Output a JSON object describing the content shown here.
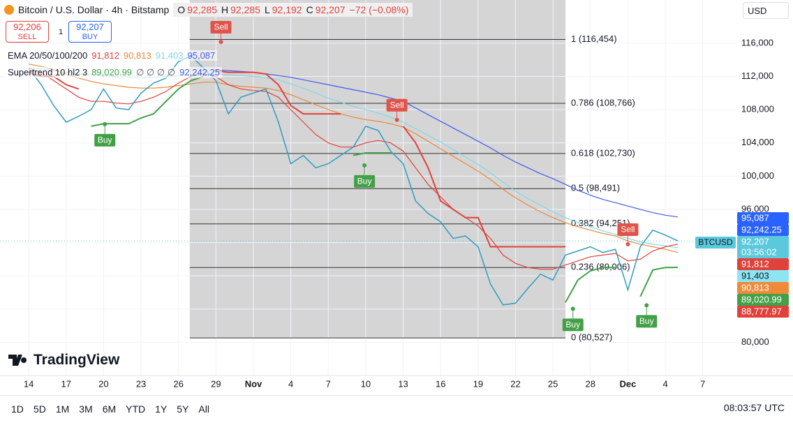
{
  "header": {
    "title": "Bitcoin / U.S. Dollar · 4h · Bitstamp",
    "ohlc": [
      {
        "key": "O",
        "value": "92,285"
      },
      {
        "key": "H",
        "value": "92,285"
      },
      {
        "key": "L",
        "value": "92,192"
      },
      {
        "key": "C",
        "value": "92,207"
      }
    ],
    "change": "−72 (−0.08%)",
    "sell": {
      "price": "92,206",
      "label": "SELL"
    },
    "spread": "1",
    "buy": {
      "price": "92,207",
      "label": "BUY"
    },
    "currency": "USD"
  },
  "legend": [
    {
      "label": "EMA 20/50/100/200",
      "items": [
        {
          "text": "91,812",
          "color": "#e0413a"
        },
        {
          "text": "90,813",
          "color": "#e8883a"
        },
        {
          "text": "91,403",
          "color": "#7fd8e8"
        },
        {
          "text": "95,087",
          "color": "#3d5af1"
        }
      ]
    },
    {
      "label": "Supertrend 10 hl2 3",
      "items": [
        {
          "text": "89,020.99",
          "color": "#43a047"
        },
        {
          "text": "∅ ∅ ∅ ∅",
          "color": "#555"
        },
        {
          "text": "92,242.25",
          "color": "#3d5af1"
        }
      ]
    }
  ],
  "chart_data": {
    "type": "line",
    "x": [
      0,
      1,
      2,
      3,
      4,
      5,
      6,
      7,
      8,
      9,
      10,
      11,
      12,
      13,
      14,
      15,
      16,
      17,
      18,
      19,
      20,
      21,
      22,
      23,
      24,
      25,
      26,
      27,
      28,
      29,
      30,
      31,
      32,
      33,
      34,
      35,
      36,
      37,
      38,
      39,
      40,
      41,
      42,
      43,
      44,
      45,
      46,
      47,
      48,
      49,
      50,
      51,
      52
    ],
    "series": [
      {
        "color": "#3d5af1",
        "values": [
          null,
          null,
          null,
          null,
          null,
          null,
          null,
          null,
          null,
          null,
          null,
          null,
          null,
          null,
          null,
          112800,
          112700,
          112600,
          112500,
          112300,
          112100,
          111900,
          111600,
          111300,
          111000,
          110700,
          110400,
          110100,
          109800,
          109400,
          109000,
          108200,
          107400,
          106600,
          105800,
          105000,
          104200,
          103400,
          102500,
          101700,
          101000,
          100300,
          99700,
          99000,
          98300,
          97700,
          97200,
          96800,
          96400,
          96000,
          95600,
          95300,
          95087
        ]
      },
      {
        "color": "#7fd8e8",
        "values": [
          113000,
          112900,
          112700,
          112500,
          112300,
          112200,
          112100,
          112000,
          111900,
          111900,
          111900,
          112000,
          112100,
          112200,
          112300,
          112300,
          112200,
          112100,
          112000,
          111900,
          111600,
          111100,
          110600,
          110000,
          109400,
          108900,
          108400,
          108000,
          107600,
          107100,
          106500,
          105700,
          104900,
          104100,
          103200,
          102300,
          101400,
          100400,
          99300,
          98200,
          97300,
          96500,
          95700,
          95000,
          94400,
          93900,
          93400,
          93000,
          92500,
          92100,
          91800,
          91600,
          91403
        ]
      },
      {
        "color": "#e8883a",
        "values": [
          113500,
          113200,
          112800,
          112300,
          111800,
          111400,
          111100,
          110900,
          110700,
          110600,
          110600,
          110700,
          110900,
          111100,
          111300,
          111300,
          111000,
          110800,
          110700,
          110600,
          110300,
          109800,
          109200,
          108600,
          108000,
          107500,
          107100,
          106800,
          106600,
          106300,
          105900,
          105100,
          104200,
          103300,
          102400,
          101500,
          100600,
          99600,
          98400,
          97400,
          96500,
          95700,
          95000,
          94400,
          93900,
          93500,
          93100,
          92800,
          92200,
          91800,
          91500,
          91200,
          90813
        ]
      },
      {
        "color": "#e0413a",
        "values": [
          113000,
          112500,
          111500,
          110500,
          109500,
          109000,
          109000,
          108800,
          108700,
          109000,
          109500,
          110200,
          111200,
          112000,
          112300,
          112000,
          111000,
          110500,
          110300,
          110200,
          109500,
          108000,
          106500,
          105000,
          104000,
          103500,
          103500,
          104000,
          104300,
          104000,
          103000,
          101000,
          99000,
          97500,
          96000,
          95000,
          94000,
          92500,
          90500,
          89500,
          89000,
          88800,
          88800,
          89300,
          89800,
          90300,
          90500,
          90700,
          89800,
          90000,
          91000,
          91500,
          91812
        ]
      },
      {
        "color": "#43a047",
        "width": 2,
        "values": [
          null,
          null,
          null,
          null,
          null,
          106000,
          106300,
          106300,
          106300,
          107000,
          107500,
          109000,
          110500,
          111500,
          112000,
          null,
          null,
          null,
          null,
          null,
          null,
          null,
          null,
          null,
          null,
          null,
          102500,
          102800,
          102800,
          102800,
          null,
          null,
          null,
          null,
          null,
          null,
          null,
          null,
          null,
          null,
          null,
          null,
          null,
          84800,
          87500,
          88600,
          89000,
          89000,
          null,
          85500,
          88700,
          89000,
          89021
        ]
      },
      {
        "color": "#e0413a",
        "width": 2,
        "values": [
          112500,
          112000,
          112000,
          111000,
          110500,
          null,
          null,
          null,
          null,
          null,
          null,
          null,
          null,
          null,
          null,
          112700,
          112500,
          112500,
          112500,
          112300,
          111000,
          108500,
          107500,
          107500,
          107500,
          107500,
          null,
          null,
          null,
          null,
          106000,
          104000,
          101000,
          97000,
          96000,
          95000,
          95000,
          91500,
          91500,
          91500,
          91500,
          91500,
          91500,
          91500,
          null,
          null,
          null,
          null,
          92000,
          null,
          null,
          null,
          null
        ]
      },
      {
        "color": "#2f9bc0",
        "width": 1.5,
        "values": [
          113000,
          111000,
          108500,
          106500,
          107200,
          108000,
          110500,
          108200,
          108000,
          110000,
          111200,
          111800,
          113800,
          114500,
          113000,
          111500,
          107500,
          109500,
          110000,
          110500,
          106500,
          101500,
          102500,
          101000,
          101500,
          102500,
          103500,
          106000,
          105500,
          103000,
          101500,
          97000,
          95500,
          94500,
          92500,
          92800,
          91500,
          87000,
          84500,
          84700,
          86500,
          88200,
          87500,
          90500,
          91000,
          91500,
          90800,
          91200,
          86300,
          91500,
          93500,
          92900,
          92207
        ]
      }
    ],
    "xlim": [
      -2.3,
      56.7
    ],
    "ylim": [
      76000,
      121200
    ],
    "xticks": [
      {
        "value": 0,
        "label": "14"
      },
      {
        "value": 3,
        "label": "17"
      },
      {
        "value": 6,
        "label": "20"
      },
      {
        "value": 9,
        "label": "23"
      },
      {
        "value": 12,
        "label": "26"
      },
      {
        "value": 15,
        "label": "29"
      },
      {
        "value": 18,
        "label": "Nov"
      },
      {
        "value": 21,
        "label": "4"
      },
      {
        "value": 24,
        "label": "7"
      },
      {
        "value": 27,
        "label": "10"
      },
      {
        "value": 30,
        "label": "13"
      },
      {
        "value": 33,
        "label": "16"
      },
      {
        "value": 36,
        "label": "19"
      },
      {
        "value": 39,
        "label": "22"
      },
      {
        "value": 42,
        "label": "25"
      },
      {
        "value": 45,
        "label": "28"
      },
      {
        "value": 48,
        "label": "Dec"
      },
      {
        "value": 51,
        "label": "4"
      },
      {
        "value": 54,
        "label": "7"
      }
    ],
    "yticks": [
      {
        "value": 80000,
        "label": "80,000"
      },
      {
        "value": 84000,
        "label": "84,000"
      },
      {
        "value": 88000,
        "label": "88,000"
      },
      {
        "value": 92000,
        "label": "92,000"
      },
      {
        "value": 96000,
        "label": "96,000"
      },
      {
        "value": 100000,
        "label": "100,000"
      },
      {
        "value": 104000,
        "label": "104,000"
      },
      {
        "value": 108000,
        "label": "108,000"
      },
      {
        "value": 112000,
        "label": "112,000"
      },
      {
        "value": 116000,
        "label": "116,000"
      }
    ],
    "grid": true,
    "fib_range": [
      12.9,
      43
    ],
    "fib_levels": [
      {
        "value": 116454,
        "label": "1 (116,454)"
      },
      {
        "value": 108766,
        "label": "0.786 (108,766)"
      },
      {
        "value": 102730,
        "label": "0.618 (102,730)"
      },
      {
        "value": 98491,
        "label": "0.5 (98,491)"
      },
      {
        "value": 94251,
        "label": "0.382 (94,251)"
      },
      {
        "value": 89006,
        "label": "0.236 (89,006)"
      },
      {
        "value": 80527,
        "label": "0 (80,527)"
      }
    ],
    "signals": [
      {
        "label": "Buy",
        "x": 6.1,
        "value": 106260,
        "color": "#43a047"
      },
      {
        "label": "Sell",
        "x": 15.4,
        "value": 116160,
        "color": "#e0534a"
      },
      {
        "label": "Buy",
        "x": 26.9,
        "value": 101300,
        "color": "#43a047"
      },
      {
        "label": "Sell",
        "x": 29.5,
        "value": 106770,
        "color": "#e0534a"
      },
      {
        "label": "Buy",
        "x": 43.6,
        "value": 84030,
        "color": "#43a047"
      },
      {
        "label": "Sell",
        "x": 48,
        "value": 91800,
        "color": "#e0534a"
      },
      {
        "label": "Buy",
        "x": 49.5,
        "value": 84450,
        "color": "#43a047"
      }
    ],
    "last_price": 92207,
    "symbol_tag": "BTCUSD",
    "price_badges": [
      {
        "text": "95,087",
        "color": "#2962ff"
      },
      {
        "text": "92,242.25",
        "color": "#2962ff"
      },
      {
        "text": "92,207",
        "sub": "03:56:02",
        "color": "#5bc8dc"
      },
      {
        "text": "91,812",
        "color": "#e0413a"
      },
      {
        "text": "91,403",
        "color": "#8ee5f2",
        "dark": true
      },
      {
        "text": "90,813",
        "color": "#ef8a3a"
      },
      {
        "text": "89,020.99",
        "color": "#43a047"
      },
      {
        "text": "88,777.97",
        "color": "#e0413a"
      }
    ]
  },
  "footer": {
    "brand": "TradingView",
    "ranges": [
      "1D",
      "5D",
      "1M",
      "3M",
      "6M",
      "YTD",
      "1Y",
      "5Y",
      "All"
    ],
    "time": "08:03:57 UTC"
  }
}
